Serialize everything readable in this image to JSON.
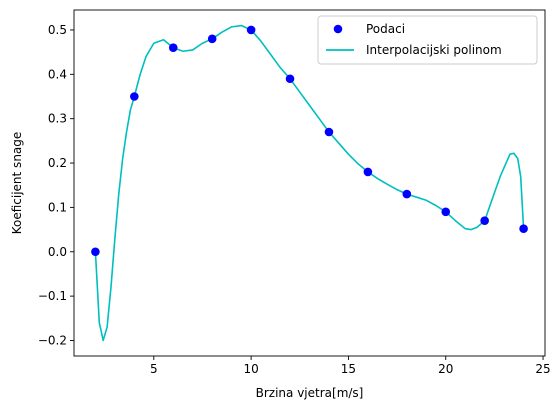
{
  "chart_data": {
    "type": "scatter",
    "title": "",
    "xlabel": "Brzina vjetra[m/s]",
    "ylabel": "Koeficijent snage",
    "xlim": [
      0.9,
      25.1
    ],
    "ylim": [
      -0.235,
      0.545
    ],
    "xticks": [
      5,
      10,
      15,
      20,
      25
    ],
    "yticks": [
      -0.2,
      -0.1,
      0.0,
      0.1,
      0.2,
      0.3,
      0.4,
      0.5
    ],
    "xtick_labels": [
      "5",
      "10",
      "15",
      "20",
      "25"
    ],
    "ytick_labels": [
      "−0.2",
      "−0.1",
      "0.0",
      "0.1",
      "0.2",
      "0.3",
      "0.4",
      "0.5"
    ],
    "grid": false,
    "legend_position": "top-right",
    "series": [
      {
        "name": "Podaci",
        "kind": "scatter",
        "color": "#0000ff",
        "x": [
          2,
          4,
          6,
          8,
          10,
          12,
          14,
          16,
          18,
          20,
          22,
          24
        ],
        "y": [
          0.0,
          0.35,
          0.46,
          0.48,
          0.5,
          0.39,
          0.27,
          0.18,
          0.13,
          0.09,
          0.07,
          0.052
        ]
      },
      {
        "name": "Interpolacijski polinom",
        "kind": "line",
        "color": "#00bfbf",
        "x": [
          2.0,
          2.2,
          2.4,
          2.6,
          2.8,
          3.0,
          3.2,
          3.4,
          3.6,
          3.8,
          4.0,
          4.3,
          4.6,
          5.0,
          5.5,
          6.0,
          6.5,
          7.0,
          7.5,
          8.0,
          8.5,
          9.0,
          9.5,
          10.0,
          10.5,
          11.0,
          11.5,
          12.0,
          12.5,
          13.0,
          13.5,
          14.0,
          14.5,
          15.0,
          15.5,
          16.0,
          16.5,
          17.0,
          17.5,
          18.0,
          18.5,
          19.0,
          19.5,
          20.0,
          20.5,
          21.0,
          21.3,
          21.6,
          22.0,
          22.4,
          22.8,
          23.1,
          23.3,
          23.5,
          23.7,
          23.85,
          24.0
        ],
        "y": [
          0.0,
          -0.16,
          -0.2,
          -0.17,
          -0.08,
          0.03,
          0.13,
          0.21,
          0.27,
          0.32,
          0.35,
          0.4,
          0.44,
          0.47,
          0.478,
          0.46,
          0.452,
          0.455,
          0.47,
          0.48,
          0.495,
          0.507,
          0.51,
          0.5,
          0.475,
          0.445,
          0.415,
          0.39,
          0.36,
          0.33,
          0.3,
          0.27,
          0.245,
          0.22,
          0.198,
          0.18,
          0.165,
          0.152,
          0.14,
          0.13,
          0.123,
          0.116,
          0.104,
          0.09,
          0.07,
          0.052,
          0.05,
          0.055,
          0.07,
          0.12,
          0.17,
          0.2,
          0.22,
          0.222,
          0.21,
          0.17,
          0.052
        ]
      }
    ]
  }
}
